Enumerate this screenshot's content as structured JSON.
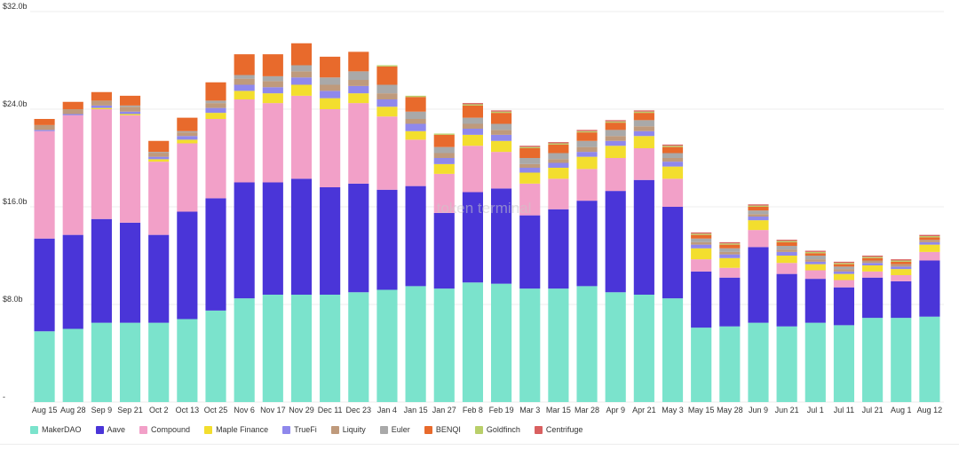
{
  "chart_data": {
    "type": "bar",
    "stacked": true,
    "watermark": "token terminal",
    "ylim": [
      0,
      32
    ],
    "y_ticks": [
      {
        "value": 0,
        "label": "-"
      },
      {
        "value": 8,
        "label": "$8.0b"
      },
      {
        "value": 16,
        "label": "$16.0b"
      },
      {
        "value": 24,
        "label": "$24.0b"
      },
      {
        "value": 32,
        "label": "$32.0b"
      }
    ],
    "x_tick_labels": [
      "Aug 15",
      "Aug 28",
      "Sep 9",
      "Sep 21",
      "Oct 2",
      "Oct 13",
      "Oct 25",
      "Nov 6",
      "Nov 17",
      "Nov 29",
      "Dec 11",
      "Dec 23",
      "Jan 4",
      "Jan 15",
      "Jan 27",
      "Feb 8",
      "Feb 19",
      "Mar 3",
      "Mar 15",
      "Mar 28",
      "Apr 9",
      "Apr 21",
      "May 3",
      "May 15",
      "May 28",
      "Jun 9",
      "Jun 21",
      "Jul 1",
      "Jul 11",
      "Jul 21",
      "Aug 1",
      "Aug 12"
    ],
    "gridlines": true,
    "legend_position": "bottom",
    "series": [
      {
        "name": "MakerDAO",
        "color": "#7be3cc",
        "values": [
          5.8,
          6.0,
          6.5,
          6.5,
          6.5,
          6.8,
          7.5,
          8.5,
          8.8,
          8.8,
          8.8,
          9.0,
          9.2,
          9.5,
          9.3,
          9.8,
          9.7,
          9.3,
          9.3,
          9.5,
          9.0,
          8.8,
          8.5,
          6.1,
          6.2,
          6.5,
          6.2,
          6.5,
          6.3,
          6.9,
          6.9,
          7.0
        ]
      },
      {
        "name": "Aave",
        "color": "#4a35d8",
        "values": [
          7.6,
          7.7,
          8.5,
          8.2,
          7.2,
          8.8,
          9.2,
          9.5,
          9.2,
          9.5,
          8.8,
          8.9,
          8.2,
          8.2,
          6.2,
          7.4,
          7.8,
          6.0,
          6.5,
          7.0,
          8.3,
          9.4,
          7.5,
          4.6,
          4.0,
          6.2,
          4.3,
          3.6,
          3.1,
          3.3,
          3.0,
          4.6
        ]
      },
      {
        "name": "Compound",
        "color": "#f2a0c8",
        "values": [
          8.8,
          9.8,
          9.0,
          8.8,
          6.0,
          5.6,
          6.5,
          6.8,
          6.5,
          6.8,
          6.4,
          6.6,
          6.0,
          3.8,
          3.2,
          3.8,
          3.0,
          2.6,
          2.5,
          2.6,
          2.7,
          2.6,
          2.3,
          1.0,
          0.8,
          1.4,
          0.9,
          0.7,
          0.6,
          0.5,
          0.5,
          0.7
        ]
      },
      {
        "name": "Maple Finance",
        "color": "#f3de2e",
        "values": [
          0.0,
          0.0,
          0.1,
          0.1,
          0.2,
          0.3,
          0.5,
          0.7,
          0.8,
          0.9,
          0.9,
          0.8,
          0.8,
          0.7,
          0.8,
          0.9,
          0.9,
          0.9,
          0.9,
          1.0,
          1.0,
          1.0,
          1.0,
          0.9,
          0.8,
          0.8,
          0.6,
          0.5,
          0.5,
          0.5,
          0.5,
          0.6
        ]
      },
      {
        "name": "TrueFi",
        "color": "#8f88ec",
        "values": [
          0.1,
          0.1,
          0.2,
          0.2,
          0.2,
          0.3,
          0.4,
          0.5,
          0.5,
          0.6,
          0.6,
          0.6,
          0.6,
          0.6,
          0.5,
          0.5,
          0.5,
          0.4,
          0.4,
          0.4,
          0.4,
          0.4,
          0.4,
          0.3,
          0.3,
          0.3,
          0.3,
          0.2,
          0.2,
          0.2,
          0.2,
          0.2
        ]
      },
      {
        "name": "Liquity",
        "color": "#bf9a7c",
        "values": [
          0.4,
          0.4,
          0.4,
          0.4,
          0.3,
          0.3,
          0.4,
          0.5,
          0.5,
          0.5,
          0.5,
          0.5,
          0.5,
          0.4,
          0.4,
          0.4,
          0.4,
          0.3,
          0.3,
          0.4,
          0.4,
          0.4,
          0.3,
          0.2,
          0.2,
          0.2,
          0.2,
          0.2,
          0.2,
          0.2,
          0.2,
          0.2
        ]
      },
      {
        "name": "Euler",
        "color": "#a9a9a9",
        "values": [
          0.0,
          0.0,
          0.0,
          0.1,
          0.1,
          0.1,
          0.2,
          0.3,
          0.4,
          0.5,
          0.6,
          0.7,
          0.7,
          0.6,
          0.5,
          0.5,
          0.5,
          0.5,
          0.5,
          0.5,
          0.5,
          0.5,
          0.4,
          0.3,
          0.3,
          0.3,
          0.3,
          0.3,
          0.2,
          0.0,
          0.0,
          0.0
        ]
      },
      {
        "name": "BENQI",
        "color": "#e86a2c",
        "values": [
          0.5,
          0.6,
          0.7,
          0.8,
          0.9,
          1.1,
          1.5,
          1.7,
          1.8,
          1.8,
          1.7,
          1.6,
          1.5,
          1.2,
          1.0,
          1.0,
          0.9,
          0.8,
          0.7,
          0.7,
          0.6,
          0.6,
          0.5,
          0.3,
          0.3,
          0.3,
          0.3,
          0.2,
          0.2,
          0.2,
          0.2,
          0.2
        ]
      },
      {
        "name": "Goldfinch",
        "color": "#b9cf6a",
        "values": [
          0.0,
          0.0,
          0.0,
          0.0,
          0.0,
          0.0,
          0.0,
          0.0,
          0.0,
          0.0,
          0.0,
          0.0,
          0.1,
          0.1,
          0.1,
          0.1,
          0.1,
          0.1,
          0.1,
          0.1,
          0.1,
          0.1,
          0.1,
          0.1,
          0.1,
          0.1,
          0.1,
          0.1,
          0.1,
          0.1,
          0.1,
          0.1
        ]
      },
      {
        "name": "Centrifuge",
        "color": "#d96060",
        "values": [
          0.0,
          0.0,
          0.0,
          0.0,
          0.0,
          0.0,
          0.0,
          0.0,
          0.0,
          0.0,
          0.0,
          0.0,
          0.0,
          0.0,
          0.0,
          0.1,
          0.1,
          0.1,
          0.1,
          0.1,
          0.1,
          0.1,
          0.1,
          0.1,
          0.1,
          0.1,
          0.1,
          0.1,
          0.1,
          0.1,
          0.1,
          0.1
        ]
      }
    ]
  }
}
